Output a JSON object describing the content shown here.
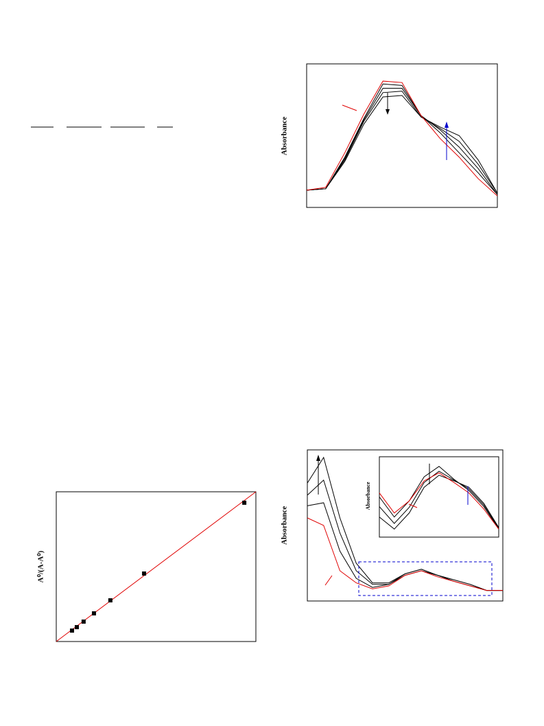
{
  "chart_data": [
    {
      "type": "line",
      "y_label": "Absorbance",
      "xlim": [
        0,
        10
      ],
      "ylim": [
        0,
        1
      ],
      "x": [
        0,
        1,
        2,
        3,
        4,
        5,
        6,
        7,
        8,
        9,
        10
      ],
      "series": [
        {
          "color": "#000000",
          "values": [
            0.12,
            0.13,
            0.35,
            0.62,
            0.86,
            0.85,
            0.64,
            0.52,
            0.38,
            0.24,
            0.09
          ]
        },
        {
          "color": "#000000",
          "values": [
            0.12,
            0.13,
            0.34,
            0.61,
            0.83,
            0.83,
            0.64,
            0.54,
            0.42,
            0.27,
            0.09
          ]
        },
        {
          "color": "#000000",
          "values": [
            0.12,
            0.13,
            0.33,
            0.6,
            0.8,
            0.81,
            0.63,
            0.55,
            0.46,
            0.3,
            0.1
          ]
        },
        {
          "color": "#000000",
          "values": [
            0.12,
            0.13,
            0.32,
            0.58,
            0.77,
            0.78,
            0.63,
            0.56,
            0.5,
            0.33,
            0.1
          ]
        },
        {
          "color": "#e00000",
          "values": [
            0.12,
            0.14,
            0.38,
            0.65,
            0.88,
            0.87,
            0.64,
            0.48,
            0.35,
            0.2,
            0.08
          ]
        }
      ]
    },
    {
      "type": "scatter",
      "y_label": "A⁰/(A-A⁰)",
      "xlim": [
        0,
        10
      ],
      "ylim": [
        0,
        10
      ],
      "x": [
        0.79,
        1.03,
        1.37,
        1.89,
        2.71,
        4.4,
        9.42
      ],
      "values": [
        0.73,
        0.96,
        1.33,
        1.88,
        2.75,
        4.54,
        9.27
      ],
      "color": "#000000",
      "fit": {
        "x": [
          0,
          10
        ],
        "values": [
          0,
          10
        ],
        "color": "#e00000"
      }
    },
    {
      "type": "line",
      "y_label": "Absorbance",
      "xlim": [
        0,
        12
      ],
      "ylim": [
        0,
        1
      ],
      "x": [
        0,
        1,
        2,
        3,
        4,
        5,
        6,
        7,
        8,
        9,
        10,
        11,
        12
      ],
      "series": [
        {
          "color": "#000000",
          "values": [
            0.78,
            0.95,
            0.55,
            0.25,
            0.12,
            0.12,
            0.18,
            0.21,
            0.17,
            0.14,
            0.11,
            0.07,
            0.07
          ]
        },
        {
          "color": "#000000",
          "values": [
            0.7,
            0.8,
            0.45,
            0.2,
            0.11,
            0.11,
            0.18,
            0.21,
            0.17,
            0.14,
            0.11,
            0.07,
            0.07
          ]
        },
        {
          "color": "#000000",
          "values": [
            0.63,
            0.65,
            0.33,
            0.15,
            0.09,
            0.11,
            0.17,
            0.2,
            0.17,
            0.13,
            0.1,
            0.07,
            0.07
          ]
        },
        {
          "color": "#e00000",
          "values": [
            0.55,
            0.5,
            0.2,
            0.12,
            0.08,
            0.1,
            0.17,
            0.2,
            0.16,
            0.13,
            0.1,
            0.07,
            0.07
          ]
        }
      ]
    },
    {
      "type": "line",
      "y_label": "Absorbance",
      "xlim": [
        0,
        8
      ],
      "ylim": [
        0,
        1
      ],
      "x": [
        0,
        1,
        2,
        3,
        4,
        5,
        6,
        7,
        8
      ],
      "series": [
        {
          "color": "#000000",
          "values": [
            0.5,
            0.25,
            0.45,
            0.75,
            0.88,
            0.72,
            0.58,
            0.38,
            0.1
          ]
        },
        {
          "color": "#000000",
          "values": [
            0.38,
            0.17,
            0.37,
            0.68,
            0.82,
            0.71,
            0.6,
            0.4,
            0.11
          ]
        },
        {
          "color": "#000000",
          "values": [
            0.25,
            0.1,
            0.3,
            0.62,
            0.77,
            0.7,
            0.62,
            0.42,
            0.12
          ]
        },
        {
          "color": "#e00000",
          "values": [
            0.55,
            0.3,
            0.45,
            0.7,
            0.8,
            0.68,
            0.55,
            0.35,
            0.1
          ]
        }
      ]
    }
  ]
}
